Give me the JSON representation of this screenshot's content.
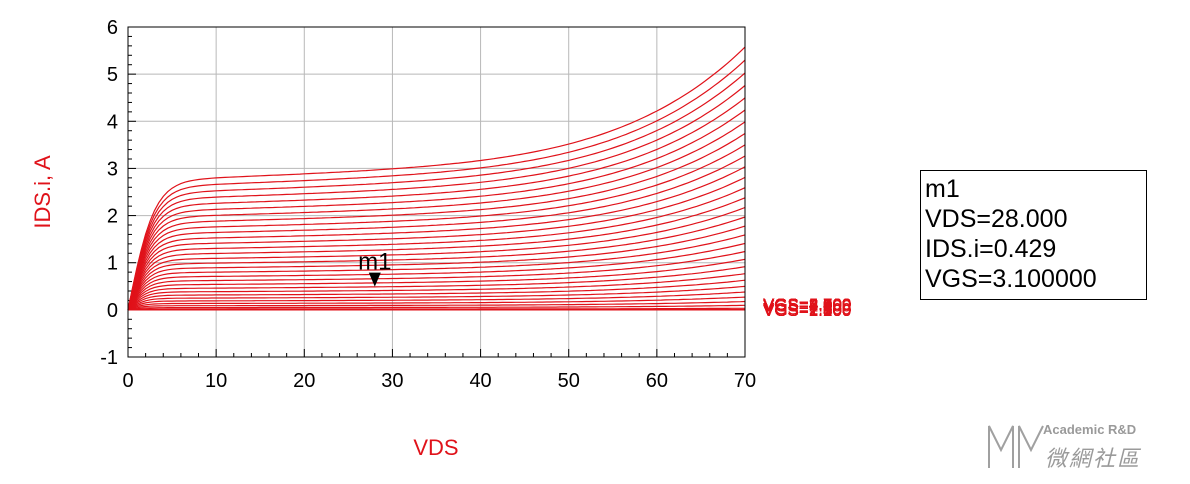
{
  "chart_data": {
    "type": "line",
    "xlabel": "VDS",
    "ylabel": "IDS.i, A",
    "xlim": [
      0,
      70
    ],
    "ylim": [
      -1,
      6
    ],
    "xticks": [
      "0",
      "10",
      "20",
      "30",
      "40",
      "50",
      "60",
      "70"
    ],
    "yticks": [
      "-1",
      "0",
      "1",
      "2",
      "3",
      "4",
      "5",
      "6"
    ],
    "grid": true,
    "line_color": "#e0121a",
    "series_params": {
      "vgs_start": 1.0,
      "vgs_stop": 5.0,
      "vgs_step": 0.1,
      "threshold_vgs": 2.0,
      "label_format": "VGS=%.3f"
    },
    "series": [
      {
        "name": "VGS=5.000",
        "values_at_x_0_10_20_30_40_50_60_70": [
          0,
          2.74,
          2.85,
          2.98,
          3.3,
          3.7,
          4.3,
          5.17
        ]
      },
      {
        "name": "VGS=4.000",
        "values_at_x_0_10_20_30_40_50_60_70": [
          0,
          1.36,
          1.42,
          1.5,
          1.67,
          1.88,
          2.15,
          2.6
        ]
      },
      {
        "name": "VGS=3.100000",
        "values_at_x_0_10_20_30_40_50_60_70": [
          0,
          0.39,
          0.405,
          0.429,
          0.47,
          0.53,
          0.62,
          0.74
        ]
      },
      {
        "name": "VGS=2.000",
        "values_at_x_0_10_20_30_40_50_60_70": [
          0,
          0.02,
          0.02,
          0.02,
          0.02,
          0.02,
          0.02,
          0.02
        ]
      }
    ],
    "marker": {
      "name": "m1",
      "x": 28.0,
      "y": 0.429,
      "vgs": "3.100000",
      "box_lines": [
        "m1",
        "VDS=28.000",
        "IDS.i=0.429",
        "VGS=3.100000"
      ]
    }
  },
  "watermark": {
    "line1": "Academic R&D",
    "line2": "微網社區"
  }
}
